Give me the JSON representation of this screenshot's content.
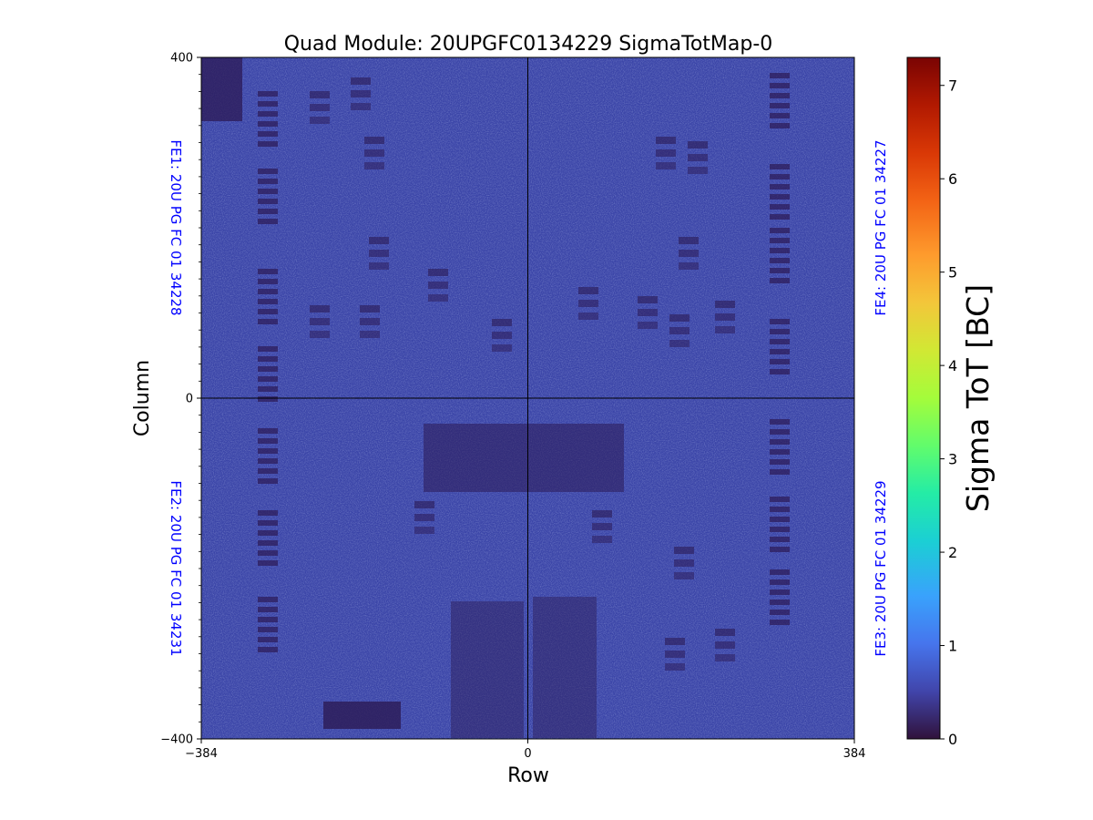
{
  "chart_data": {
    "type": "heatmap",
    "title": "Quad Module: 20UPGFC0134229 SigmaTotMap-0",
    "xlabel": "Row",
    "ylabel": "Column",
    "xlim": [
      -384,
      384
    ],
    "ylim": [
      -400,
      400
    ],
    "x_ticks": [
      -384,
      0,
      384
    ],
    "y_ticks": [
      -400,
      0,
      400
    ],
    "x_tick_labels": [
      "−384",
      "0",
      "384"
    ],
    "y_tick_labels": [
      "−400",
      "0",
      "400"
    ],
    "colorbar": {
      "label": "Sigma ToT [BC]",
      "colormap": "turbo",
      "range": [
        0,
        7.3
      ],
      "ticks": [
        0,
        1,
        2,
        3,
        4,
        5,
        6,
        7
      ],
      "tick_labels": [
        "0",
        "1",
        "2",
        "3",
        "4",
        "5",
        "6",
        "7"
      ]
    },
    "background_value": 0.6,
    "typical_range": [
      0.2,
      1.0
    ],
    "chip_labels": [
      {
        "id": "FE1",
        "text": "FE1: 20U PG FC 01 34228",
        "quadrant": "top-left"
      },
      {
        "id": "FE2",
        "text": "FE2: 20U PG FC 01 34231",
        "quadrant": "bottom-left"
      },
      {
        "id": "FE3",
        "text": "FE3: 20U PG FC 01 34229",
        "quadrant": "bottom-right"
      },
      {
        "id": "FE4",
        "text": "FE4: 20U PG FC 01 34227",
        "quadrant": "top-right"
      }
    ],
    "grid": false
  },
  "colors": {
    "chip_label": "#0000ff",
    "background_fill": "#3b45a8",
    "low_patch": "#2c1a55",
    "divider": "#000000"
  }
}
